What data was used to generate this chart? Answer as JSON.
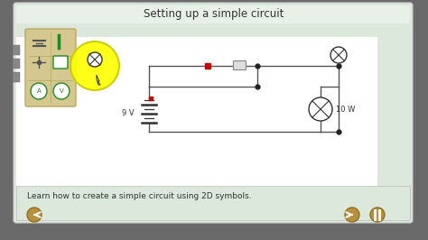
{
  "title": "Setting up a simple circuit",
  "subtitle": "Learn how to create a simple circuit using 2D symbols.",
  "bg_outer": "#6a6a6a",
  "bg_main": "#dce8dc",
  "bg_white_area": "#f0f8f0",
  "bg_bottom": "#dce8dc",
  "title_color": "#333333",
  "subtitle_color": "#333333",
  "wire_color": "#555555",
  "battery_label": "9 V",
  "bulb_label": "10 W",
  "panel_bg": "#d4c890",
  "panel_border": "#b8a860",
  "yellow_color": "#ffff00",
  "yellow_edge": "#c8c800",
  "red_color": "#cc0000",
  "nav_btn_color": "#b89040",
  "nav_btn_edge": "#907020",
  "left_tab_color": "#888888",
  "dot_color": "#222222",
  "switch_bg": "#dddddd",
  "circuit_bg": "#ffffff"
}
